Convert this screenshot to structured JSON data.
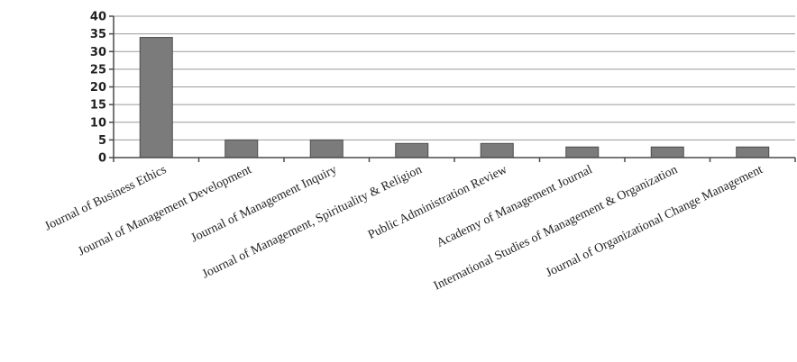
{
  "chart_data": {
    "type": "bar",
    "title": "",
    "xlabel": "",
    "ylabel": "",
    "ylim": [
      0,
      40
    ],
    "yticks": [
      0,
      5,
      10,
      15,
      20,
      25,
      30,
      35,
      40
    ],
    "grid": true,
    "legend": "none",
    "bar_color": "#7b7b7b",
    "categories": [
      "Journal of Business Ethics",
      "Journal of Management Development",
      "Journal of Management Inquiry",
      "Journal of Management, Spirituality & Religion",
      "Public Administration Review",
      "Academy of Management Journal",
      "International Studies of Management & Organization",
      "Journal of Organizational Change Management"
    ],
    "values": [
      34,
      5,
      5,
      4,
      4,
      3,
      3,
      3
    ]
  }
}
